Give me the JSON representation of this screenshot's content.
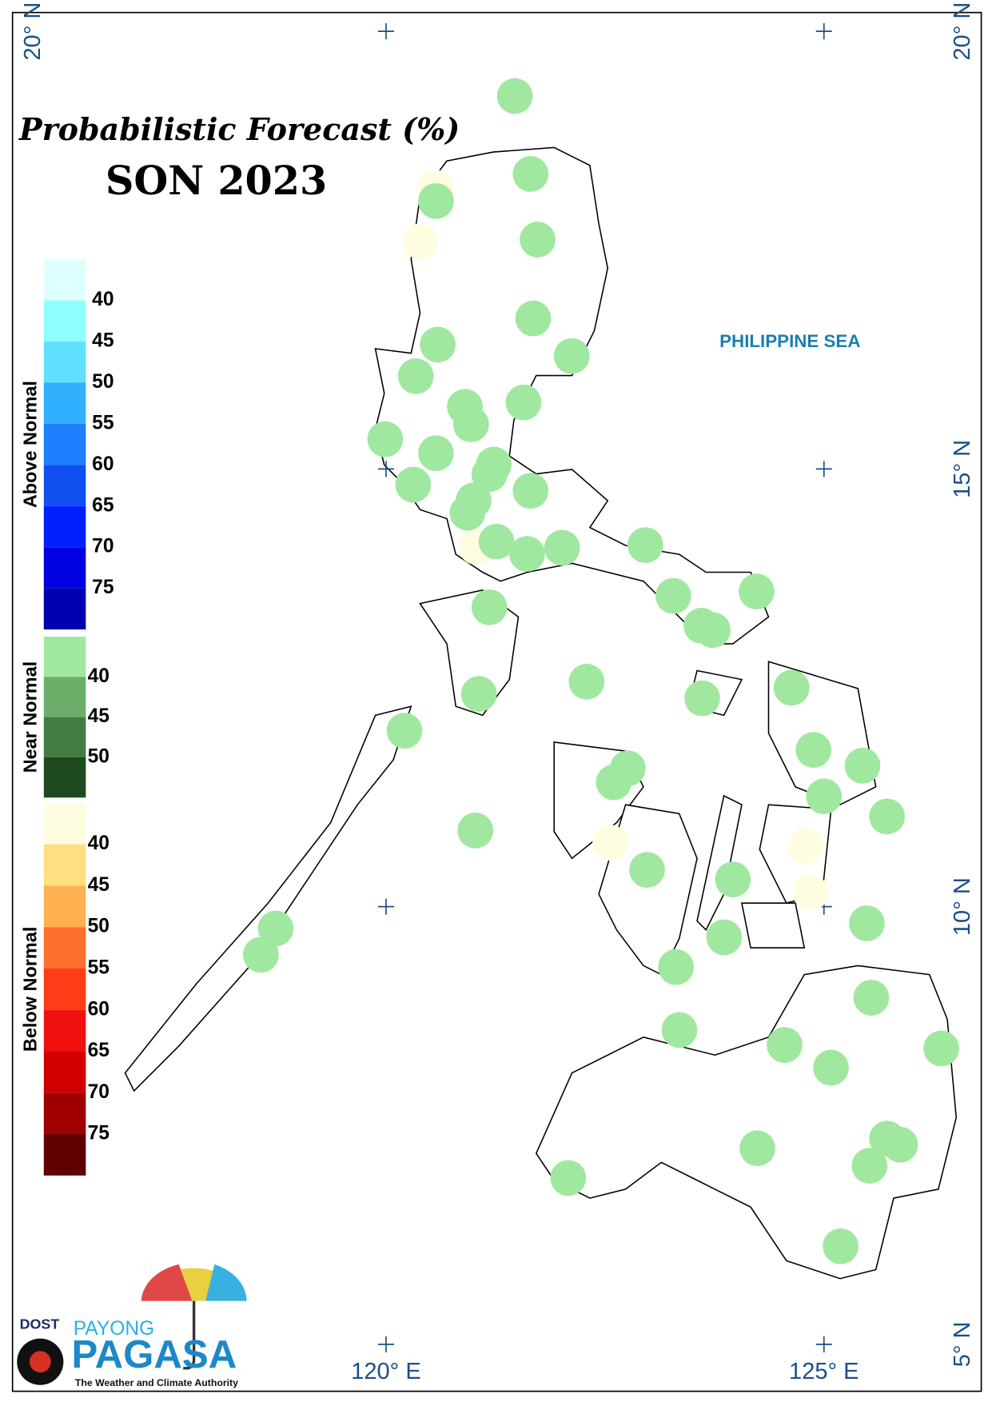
{
  "title": "Probabilistic Forecast (%)",
  "subtitle": "SON 2023",
  "sea_label": "PHILIPPINE SEA",
  "lat_ticks": [
    {
      "value": 20,
      "label": "20° N"
    },
    {
      "value": 15,
      "label": "15° N"
    },
    {
      "value": 10,
      "label": "10° N"
    },
    {
      "value": 5,
      "label": "5° N"
    }
  ],
  "lon_ticks": [
    {
      "value": 120,
      "label": "120° E"
    },
    {
      "value": 125,
      "label": "125° E"
    }
  ],
  "legend": [
    {
      "name": "Above Normal",
      "colors": [
        "#e0ffff",
        "#90ffff",
        "#60e0ff",
        "#30b0ff",
        "#1c80ff",
        "#1050f0",
        "#0020ff",
        "#0000e0",
        "#0000b0"
      ],
      "labels": [
        40,
        45,
        50,
        55,
        60,
        65,
        70,
        75
      ]
    },
    {
      "name": "Near Normal",
      "colors": [
        "#a0e8a0",
        "#6aae6a",
        "#437c43",
        "#1f4a1f"
      ],
      "labels": [
        40,
        45,
        50
      ],
      "stations": [
        [
          121.47,
          19.26
        ],
        [
          121.65,
          18.37
        ],
        [
          120.57,
          18.06
        ],
        [
          121.73,
          17.62
        ],
        [
          121.68,
          16.72
        ],
        [
          120.59,
          16.42
        ],
        [
          122.12,
          16.29
        ],
        [
          120.34,
          16.06
        ],
        [
          121.57,
          15.76
        ],
        [
          120.9,
          15.71
        ],
        [
          120.97,
          15.51
        ],
        [
          119.99,
          15.34
        ],
        [
          120.57,
          15.18
        ],
        [
          121.23,
          15.05
        ],
        [
          121.18,
          14.94
        ],
        [
          120.31,
          14.82
        ],
        [
          121.65,
          14.75
        ],
        [
          121.0,
          14.64
        ],
        [
          120.93,
          14.5
        ],
        [
          121.26,
          14.17
        ],
        [
          121.61,
          14.03
        ],
        [
          122.01,
          14.1
        ],
        [
          122.96,
          14.13
        ],
        [
          124.23,
          13.6
        ],
        [
          123.28,
          13.55
        ],
        [
          121.18,
          13.42
        ],
        [
          123.6,
          13.21
        ],
        [
          123.73,
          13.16
        ],
        [
          122.29,
          12.57
        ],
        [
          124.63,
          12.5
        ],
        [
          121.06,
          12.43
        ],
        [
          123.61,
          12.38
        ],
        [
          120.21,
          12.01
        ],
        [
          124.88,
          11.79
        ],
        [
          125.44,
          11.61
        ],
        [
          122.76,
          11.58
        ],
        [
          122.6,
          11.42
        ],
        [
          125.0,
          11.26
        ],
        [
          125.72,
          11.03
        ],
        [
          121.02,
          10.87
        ],
        [
          122.98,
          10.42
        ],
        [
          123.96,
          10.31
        ],
        [
          118.74,
          9.75
        ],
        [
          125.49,
          9.81
        ],
        [
          118.57,
          9.45
        ],
        [
          123.86,
          9.65
        ],
        [
          123.31,
          9.31
        ],
        [
          125.54,
          8.96
        ],
        [
          123.35,
          8.59
        ],
        [
          124.55,
          8.42
        ],
        [
          126.34,
          8.38
        ],
        [
          125.08,
          8.16
        ],
        [
          125.72,
          7.35
        ],
        [
          125.87,
          7.28
        ],
        [
          124.24,
          7.24
        ],
        [
          125.52,
          7.04
        ],
        [
          122.08,
          6.9
        ],
        [
          125.19,
          6.12
        ]
      ]
    },
    {
      "name": "Below Normal",
      "colors": [
        "#fffde0",
        "#ffe080",
        "#ffb050",
        "#ff7030",
        "#ff3c18",
        "#f01010",
        "#d00000",
        "#a00000",
        "#600000"
      ],
      "labels": [
        40,
        45,
        50,
        55,
        60,
        65,
        70,
        75
      ],
      "stations": [
        [
          120.57,
          18.21
        ],
        [
          120.39,
          17.6
        ],
        [
          121.03,
          14.11
        ],
        [
          122.56,
          10.73
        ],
        [
          124.79,
          10.69
        ],
        [
          124.85,
          10.16
        ]
      ]
    }
  ],
  "logo": {
    "agency": "DOST",
    "brand_top": "PAYONG",
    "brand": "PAGASA",
    "tagline": "The Weather and Climate Authority"
  }
}
